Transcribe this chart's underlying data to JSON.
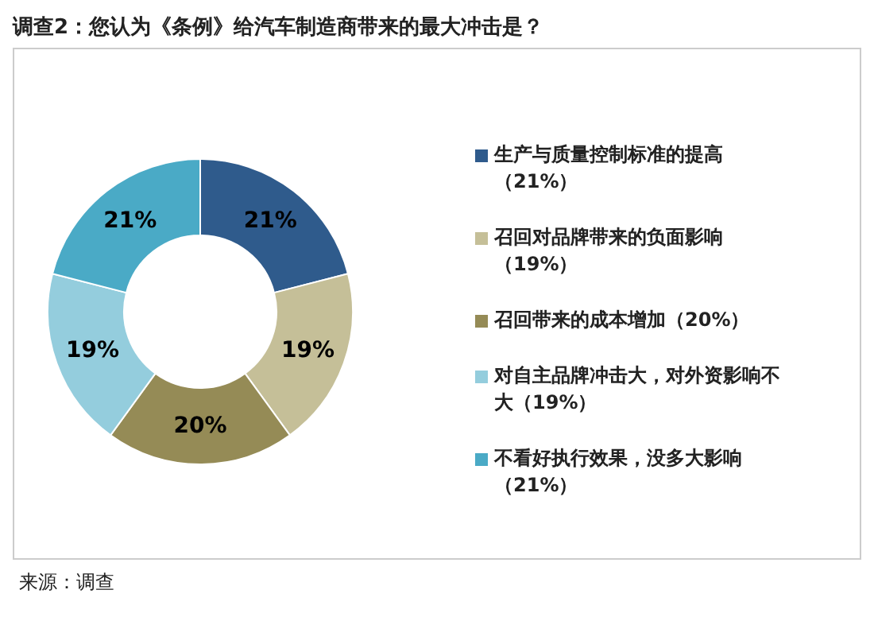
{
  "chart_data": {
    "type": "donut",
    "title": "调查2：您认为《条例》给汽车制造商带来的最大冲击是？",
    "categories": [
      "生产与质量控制标准的提高（21%）",
      "召回对品牌带来的负面影响（19%）",
      "召回带来的成本增加（20%）",
      "对自主品牌冲击大，对外资影响不大（19%）",
      "不看好执行效果，没多大影响（21%）"
    ],
    "values": [
      21,
      19,
      20,
      19,
      21
    ],
    "colors": [
      "#2f5b8c",
      "#c5bf98",
      "#958b56",
      "#94cddd",
      "#4aaac6"
    ],
    "value_labels": [
      "21%",
      "19%",
      "20%",
      "19%",
      "21%"
    ],
    "legend": "right",
    "annotations": [
      "来源：调查"
    ]
  }
}
